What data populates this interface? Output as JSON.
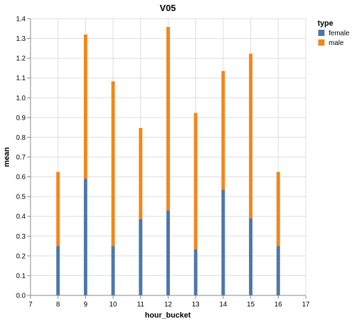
{
  "chart_data": {
    "type": "bar",
    "stacked": true,
    "title": "V05",
    "xlabel": "hour_bucket",
    "ylabel": "mean",
    "x": [
      8,
      9,
      10,
      11,
      12,
      13,
      14,
      15,
      16
    ],
    "xlim": [
      7,
      17
    ],
    "xticks": [
      "7",
      "8",
      "9",
      "10",
      "11",
      "12",
      "13",
      "14",
      "15",
      "16",
      "17"
    ],
    "ylim": [
      0,
      1.4
    ],
    "yticks": [
      "0.0",
      "0.1",
      "0.2",
      "0.3",
      "0.4",
      "0.5",
      "0.6",
      "0.7",
      "0.8",
      "0.9",
      "1.0",
      "1.1",
      "1.2",
      "1.3",
      "1.4"
    ],
    "grid": true,
    "legend": {
      "title": "type",
      "position": "top-right"
    },
    "series": [
      {
        "name": "female",
        "color": "#4c78a8",
        "values": [
          0.25,
          0.59,
          0.25,
          0.385,
          0.43,
          0.233,
          0.535,
          0.39,
          0.25
        ]
      },
      {
        "name": "male",
        "color": "#f58518",
        "values": [
          0.375,
          0.73,
          0.833,
          0.462,
          0.928,
          0.69,
          0.6,
          0.833,
          0.375
        ]
      }
    ]
  }
}
